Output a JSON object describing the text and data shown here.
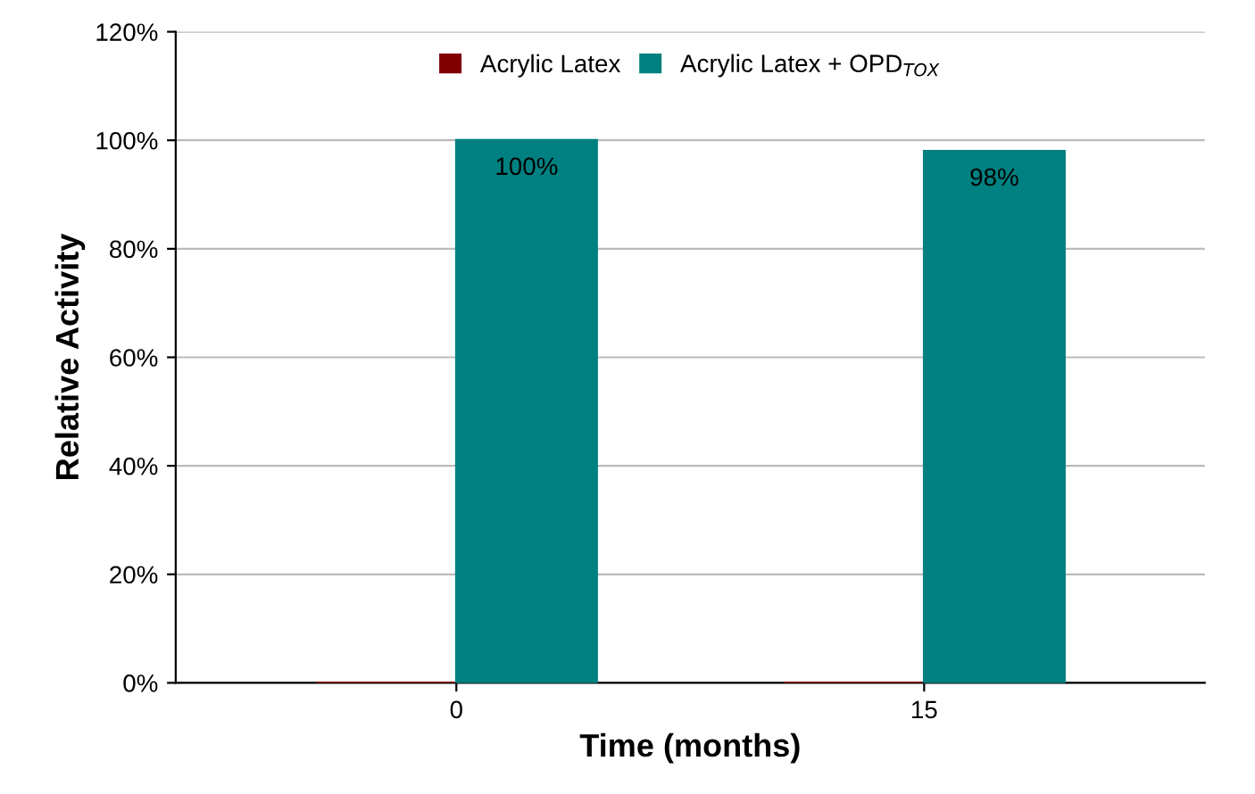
{
  "chart_data": {
    "type": "bar",
    "xlabel": "Time (months)",
    "ylabel": "Relative Activity",
    "categories": [
      "0",
      "15"
    ],
    "series": [
      {
        "name": "Acrylic Latex",
        "color": "#800000",
        "values": [
          0,
          0
        ]
      },
      {
        "name": "Acrylic Latex + OPD$_{TOX}$",
        "color": "#008080",
        "values": [
          100,
          98
        ],
        "value_labels": [
          "100%",
          "98%"
        ]
      }
    ],
    "ylim": [
      0,
      120
    ],
    "yticks": [
      {
        "value": 0,
        "label": "0%"
      },
      {
        "value": 20,
        "label": "20%"
      },
      {
        "value": 40,
        "label": "40%"
      },
      {
        "value": 60,
        "label": "60%"
      },
      {
        "value": 80,
        "label": "80%"
      },
      {
        "value": 100,
        "label": "100%"
      },
      {
        "value": 120,
        "label": "120%"
      }
    ],
    "grid": "y",
    "legend": "top"
  }
}
